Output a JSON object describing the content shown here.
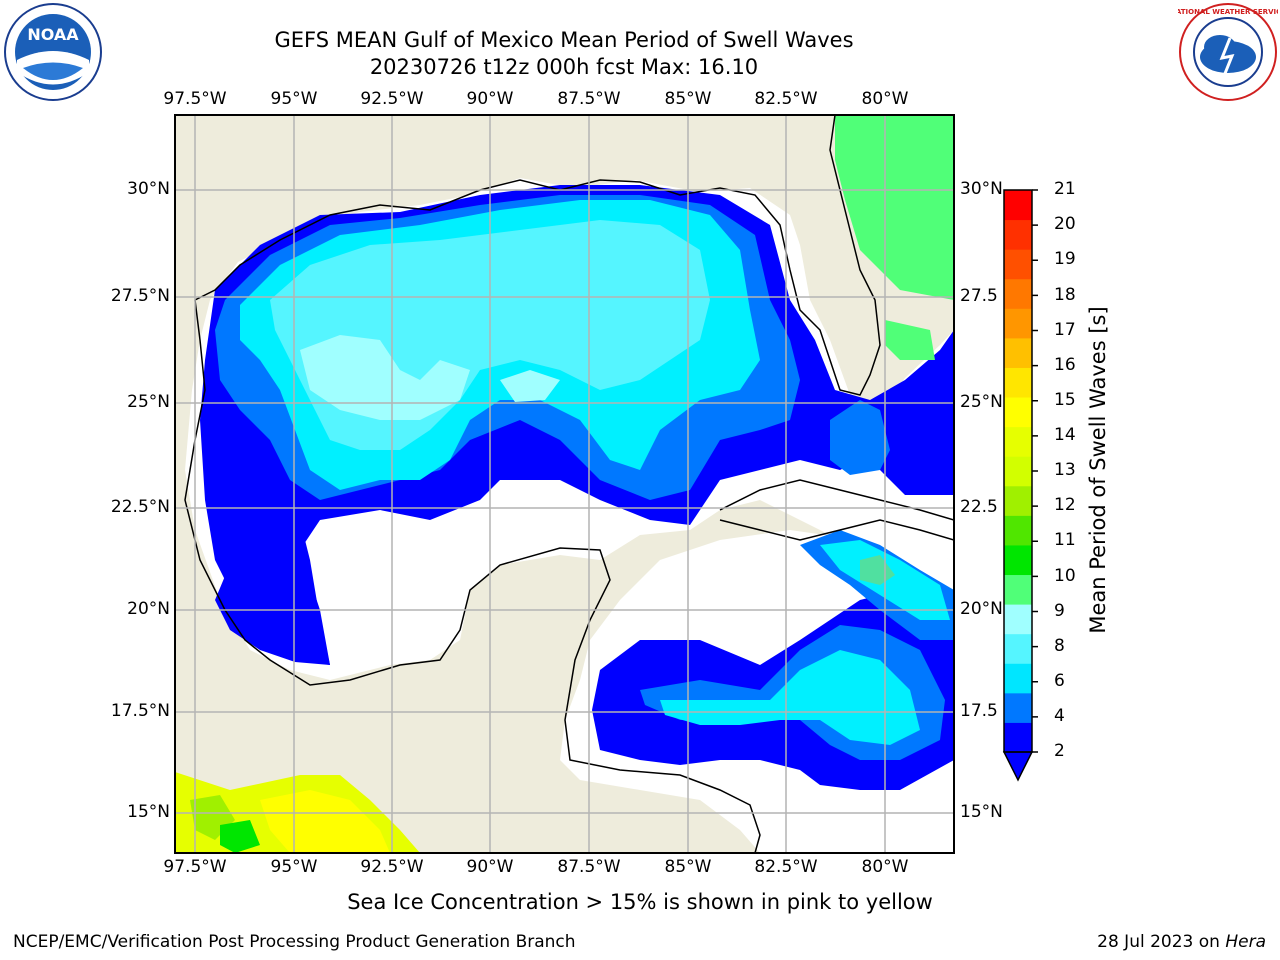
{
  "title": {
    "line1": "GEFS MEAN Gulf of Mexico Mean Period of Swell Waves",
    "line2": "20230726 t12z 000h fcst   Max: 16.10"
  },
  "logos": {
    "left": "noaa-logo",
    "left_text": "NOAA",
    "right": "nws-logo",
    "right_text": "NATIONAL WEATHER SERVICE"
  },
  "map": {
    "longitude_labels": [
      "97.5°W",
      "95°W",
      "92.5°W",
      "90°W",
      "87.5°W",
      "85°W",
      "82.5°W",
      "80°W"
    ],
    "latitude_labels_left": [
      "30°N",
      "27.5°N",
      "25°N",
      "22.5°N",
      "20°N",
      "17.5°N",
      "15°N"
    ],
    "latitude_labels_right": [
      "30°N",
      "27.5",
      "25°N",
      "22.5",
      "20°N",
      "17.5",
      "15°N"
    ],
    "colors": {
      "land": "#eeecdc",
      "grid": "#b4b4b4",
      "coast": "#000000"
    }
  },
  "colorbar": {
    "title": "Mean Period of Swell Waves [s]",
    "tick_labels": [
      "21",
      "20",
      "19",
      "18",
      "17",
      "16",
      "15",
      "14",
      "13",
      "12",
      "11",
      "10",
      "9",
      "8",
      "6",
      "4",
      "2"
    ],
    "colors": [
      "#0000ff",
      "#0078ff",
      "#00e6ff",
      "#55f5ff",
      "#a0ffff",
      "#50ff78",
      "#00e600",
      "#50e600",
      "#a0f000",
      "#d2ff00",
      "#e6ff00",
      "#ffff00",
      "#ffe600",
      "#ffc000",
      "#ff9600",
      "#ff7800",
      "#ff5000",
      "#ff3000",
      "#ff0000"
    ]
  },
  "note": "Sea Ice Concentration > 15% is shown in pink to yellow",
  "footer": {
    "left": "NCEP/EMC/Verification Post Processing Product Generation Branch",
    "right_date": "28 Jul 2023 on ",
    "right_host": "Hera"
  }
}
